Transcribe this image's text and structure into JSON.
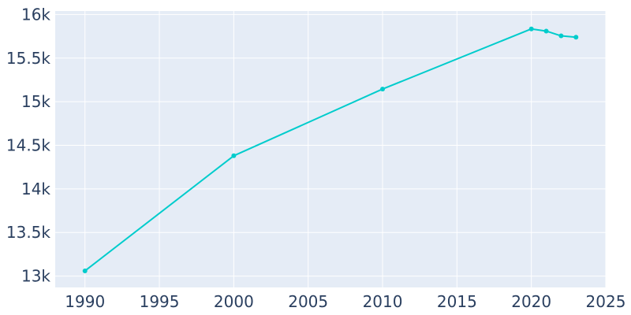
{
  "chart_data": {
    "type": "line",
    "title": "",
    "xlabel": "",
    "ylabel": "",
    "x": [
      1990,
      2000,
      2010,
      2020,
      2021,
      2022,
      2023
    ],
    "series": [
      {
        "values": [
          13060,
          14380,
          15145,
          15835,
          15810,
          15755,
          15740
        ]
      }
    ],
    "xlim": [
      1988,
      2025
    ],
    "ylim": [
      12870,
      16040
    ],
    "x_ticks": [
      1990,
      1995,
      2000,
      2005,
      2010,
      2015,
      2020,
      2025
    ],
    "x_tick_labels": [
      "1990",
      "1995",
      "2000",
      "2005",
      "2010",
      "2015",
      "2020",
      "2025"
    ],
    "y_ticks": [
      13000,
      13500,
      14000,
      14500,
      15000,
      15500,
      16000
    ],
    "y_tick_labels": [
      "13k",
      "13.5k",
      "14k",
      "14.5k",
      "15k",
      "15.5k",
      "16k"
    ],
    "grid": true,
    "legend": "none",
    "colors": {
      "line": "#00cccc",
      "plot_bg": "#e5ecf6",
      "grid": "#ffffff",
      "text": "#2a3f5f"
    }
  }
}
